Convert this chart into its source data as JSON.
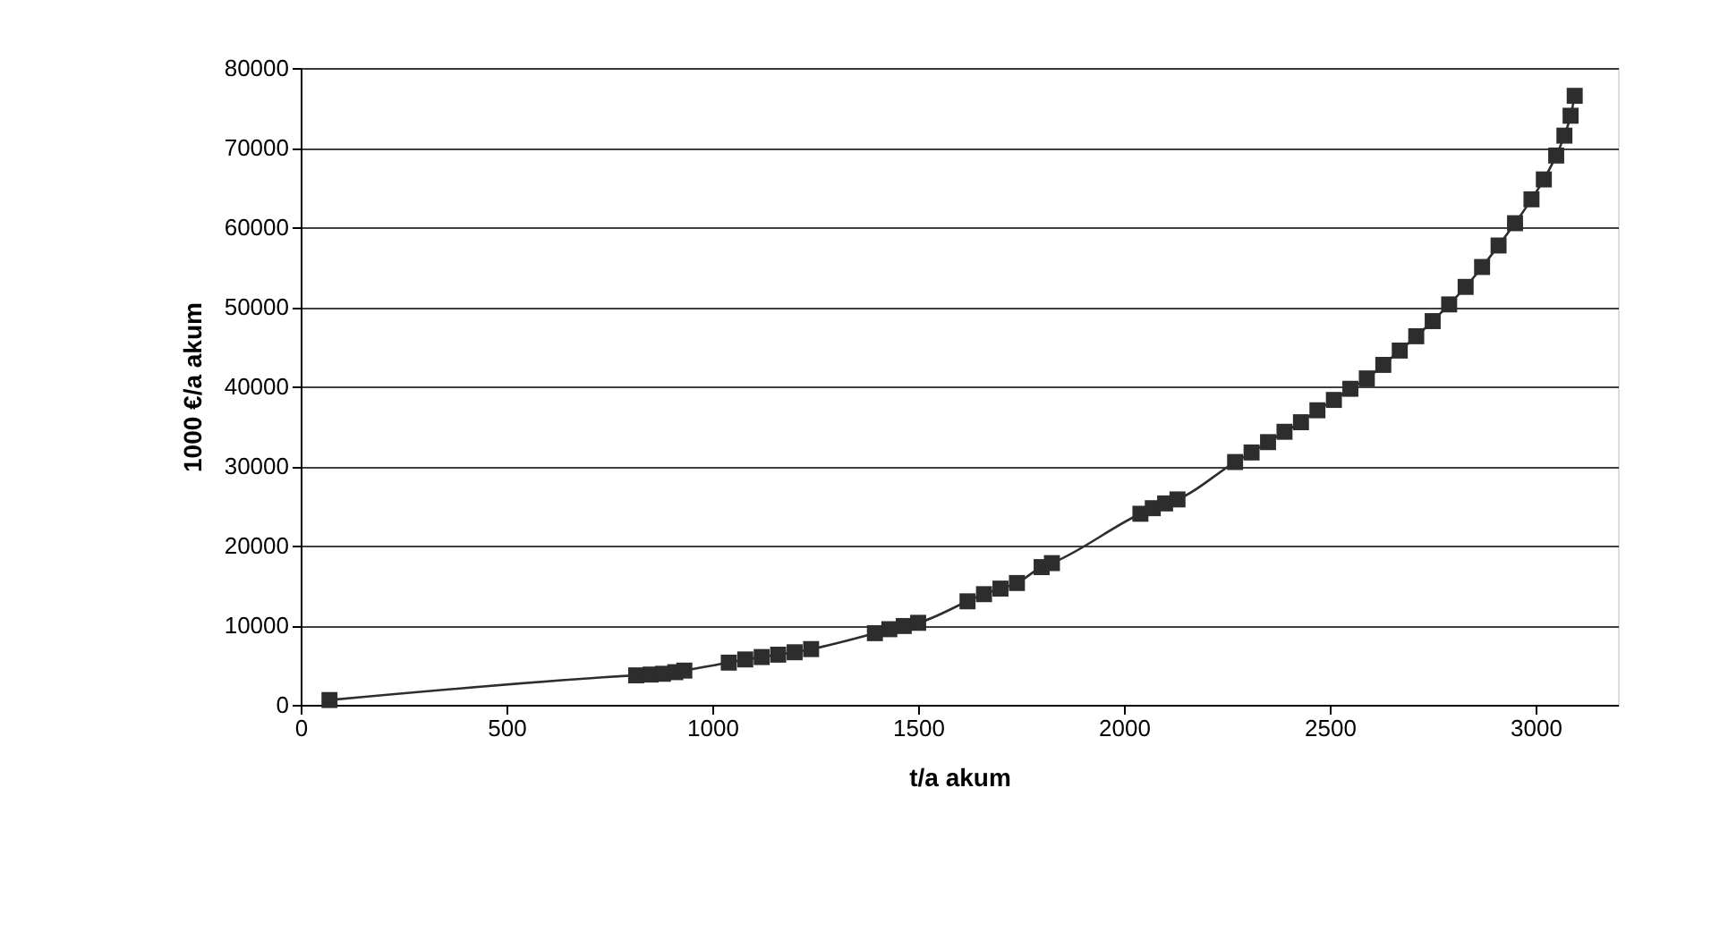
{
  "chart_data": {
    "type": "line",
    "xlabel": "t/a akum",
    "ylabel": "1000 €/a akum",
    "x": [
      70,
      815,
      850,
      880,
      910,
      932,
      1040,
      1080,
      1120,
      1160,
      1200,
      1240,
      1395,
      1430,
      1465,
      1500,
      1620,
      1660,
      1700,
      1740,
      1800,
      1825,
      2040,
      2070,
      2100,
      2130,
      2270,
      2310,
      2350,
      2390,
      2430,
      2470,
      2510,
      2550,
      2590,
      2630,
      2670,
      2710,
      2750,
      2790,
      2830,
      2870,
      2910,
      2950,
      2990,
      3020,
      3050,
      3070,
      3085,
      3095
    ],
    "series": [
      {
        "color": "#2d2d2d",
        "values": [
          600,
          3700,
          3800,
          3900,
          4100,
          4300,
          5300,
          5700,
          6000,
          6300,
          6600,
          7000,
          9000,
          9500,
          9900,
          10300,
          13000,
          13900,
          14600,
          15300,
          17300,
          17800,
          24000,
          24700,
          25300,
          25800,
          30500,
          31700,
          33000,
          34300,
          35500,
          37000,
          38300,
          39700,
          41000,
          42700,
          44500,
          46300,
          48200,
          50300,
          52500,
          55000,
          57700,
          60500,
          63500,
          66000,
          69000,
          71500,
          74000,
          76500
        ]
      }
    ],
    "xlim": [
      0,
      3200
    ],
    "xticks": [
      0,
      500,
      1000,
      1500,
      2000,
      2500,
      3000
    ],
    "ylim": [
      0,
      80000
    ],
    "yticks": [
      0,
      10000,
      20000,
      30000,
      40000,
      50000,
      60000,
      70000,
      80000
    ],
    "grid": "y",
    "marker": "square",
    "line_style": "solid"
  }
}
